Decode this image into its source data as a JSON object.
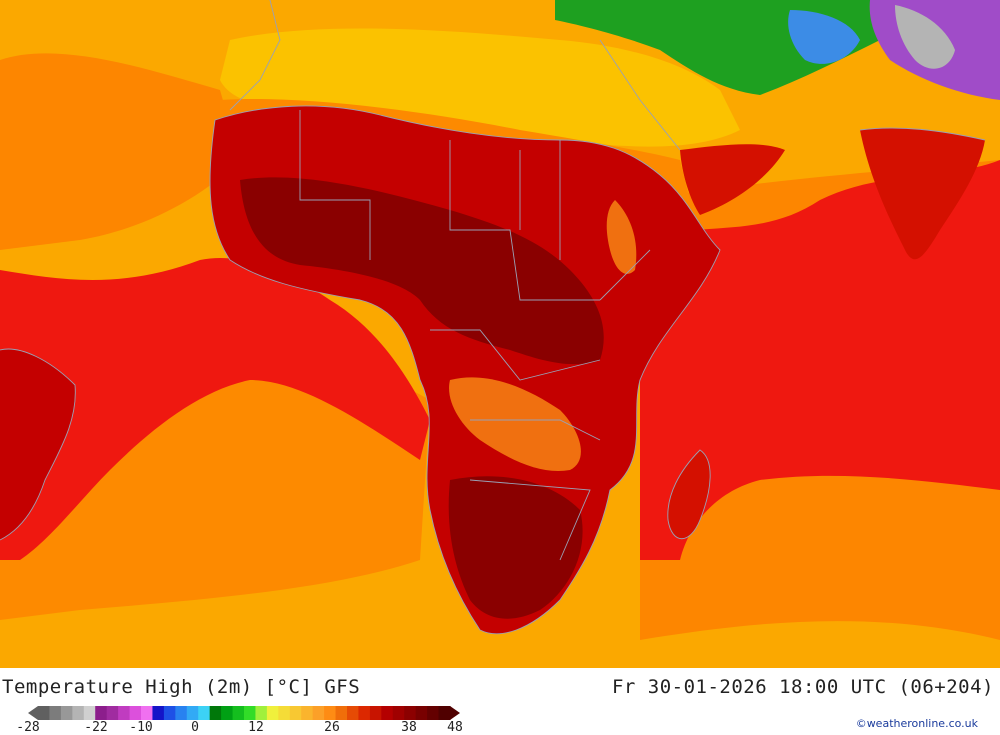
{
  "title": "Temperature High (2m) [°C] GFS",
  "datetime": "Fr 30-01-2026 18:00 UTC (06+204)",
  "credit": "©weatheronline.co.uk",
  "legend": {
    "ticks": [
      "-28",
      "-22",
      "-10",
      "0",
      "12",
      "26",
      "38",
      "48"
    ],
    "colors": [
      "#606060",
      "#7c7c7c",
      "#989898",
      "#b4b4b4",
      "#d0d0d0",
      "#8c1e8c",
      "#a02ca0",
      "#c03cc0",
      "#dc50dc",
      "#f070f0",
      "#1414c8",
      "#1e50e6",
      "#2882f0",
      "#32aaf5",
      "#3cd2f5",
      "#00780a",
      "#00a014",
      "#14be1e",
      "#32dc28",
      "#a0f03c",
      "#f0f03c",
      "#f5dc37",
      "#f8c832",
      "#fab42d",
      "#fca028",
      "#fe8c14",
      "#f06e0a",
      "#e64b05",
      "#dc2800",
      "#c81400",
      "#b40000",
      "#a00000",
      "#8c0000",
      "#780000",
      "#640000",
      "#500000"
    ]
  },
  "palette": {
    "ocean_cool": "#fba800",
    "ocean_warm": "#fd7e00",
    "hot": "#ef1810",
    "very_hot": "#c40000",
    "extreme": "#800000",
    "mild_land": "#fbc200",
    "green": "#1ea020",
    "blue": "#3c8ce6",
    "purple": "#a04cc8",
    "border": "#9aa0b4"
  }
}
